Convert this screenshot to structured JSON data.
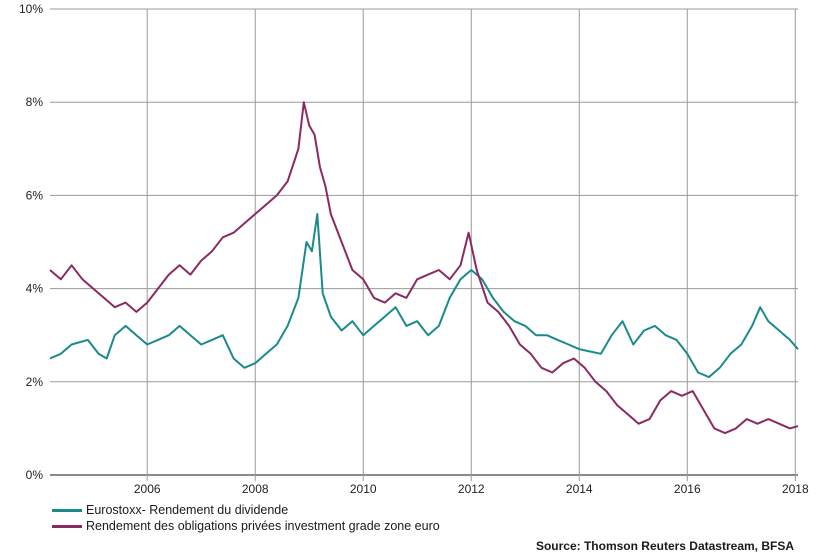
{
  "chart_data": {
    "type": "line",
    "xlim": [
      2004.2,
      2018.05
    ],
    "ylim": [
      0,
      10
    ],
    "x_ticks": [
      {
        "label": "2006",
        "value": 2006
      },
      {
        "label": "2008",
        "value": 2008
      },
      {
        "label": "2010",
        "value": 2010
      },
      {
        "label": "2012",
        "value": 2012
      },
      {
        "label": "2014",
        "value": 2014
      },
      {
        "label": "2016",
        "value": 2016
      },
      {
        "label": "2018",
        "value": 2018
      }
    ],
    "y_ticks": [
      {
        "label": "0%",
        "value": 0
      },
      {
        "label": "2%",
        "value": 2
      },
      {
        "label": "4%",
        "value": 4
      },
      {
        "label": "6%",
        "value": 6
      },
      {
        "label": "8%",
        "value": 8
      },
      {
        "label": "10%",
        "value": 10
      }
    ],
    "grid": true,
    "legend_position": "bottom-left",
    "series": [
      {
        "name": "Eurostoxx- Rendement du dividende",
        "color": "#1b8a8a",
        "points": [
          [
            2004.2,
            2.5
          ],
          [
            2004.4,
            2.6
          ],
          [
            2004.6,
            2.8
          ],
          [
            2004.9,
            2.9
          ],
          [
            2005.1,
            2.6
          ],
          [
            2005.25,
            2.5
          ],
          [
            2005.4,
            3.0
          ],
          [
            2005.6,
            3.2
          ],
          [
            2005.8,
            3.0
          ],
          [
            2006.0,
            2.8
          ],
          [
            2006.2,
            2.9
          ],
          [
            2006.4,
            3.0
          ],
          [
            2006.6,
            3.2
          ],
          [
            2006.8,
            3.0
          ],
          [
            2007.0,
            2.8
          ],
          [
            2007.2,
            2.9
          ],
          [
            2007.4,
            3.0
          ],
          [
            2007.6,
            2.5
          ],
          [
            2007.8,
            2.3
          ],
          [
            2008.0,
            2.4
          ],
          [
            2008.2,
            2.6
          ],
          [
            2008.4,
            2.8
          ],
          [
            2008.6,
            3.2
          ],
          [
            2008.8,
            3.8
          ],
          [
            2008.95,
            5.0
          ],
          [
            2009.05,
            4.8
          ],
          [
            2009.15,
            5.6
          ],
          [
            2009.25,
            3.9
          ],
          [
            2009.4,
            3.4
          ],
          [
            2009.6,
            3.1
          ],
          [
            2009.8,
            3.3
          ],
          [
            2010.0,
            3.0
          ],
          [
            2010.2,
            3.2
          ],
          [
            2010.4,
            3.4
          ],
          [
            2010.6,
            3.6
          ],
          [
            2010.8,
            3.2
          ],
          [
            2011.0,
            3.3
          ],
          [
            2011.2,
            3.0
          ],
          [
            2011.4,
            3.2
          ],
          [
            2011.6,
            3.8
          ],
          [
            2011.8,
            4.2
          ],
          [
            2012.0,
            4.4
          ],
          [
            2012.2,
            4.2
          ],
          [
            2012.4,
            3.8
          ],
          [
            2012.6,
            3.5
          ],
          [
            2012.8,
            3.3
          ],
          [
            2013.0,
            3.2
          ],
          [
            2013.2,
            3.0
          ],
          [
            2013.4,
            3.0
          ],
          [
            2013.6,
            2.9
          ],
          [
            2013.8,
            2.8
          ],
          [
            2014.0,
            2.7
          ],
          [
            2014.2,
            2.65
          ],
          [
            2014.4,
            2.6
          ],
          [
            2014.6,
            3.0
          ],
          [
            2014.8,
            3.3
          ],
          [
            2015.0,
            2.8
          ],
          [
            2015.2,
            3.1
          ],
          [
            2015.4,
            3.2
          ],
          [
            2015.6,
            3.0
          ],
          [
            2015.8,
            2.9
          ],
          [
            2016.0,
            2.6
          ],
          [
            2016.2,
            2.2
          ],
          [
            2016.4,
            2.1
          ],
          [
            2016.6,
            2.3
          ],
          [
            2016.8,
            2.6
          ],
          [
            2017.0,
            2.8
          ],
          [
            2017.2,
            3.2
          ],
          [
            2017.35,
            3.6
          ],
          [
            2017.5,
            3.3
          ],
          [
            2017.7,
            3.1
          ],
          [
            2017.9,
            2.9
          ],
          [
            2018.05,
            2.7
          ]
        ]
      },
      {
        "name": "Rendement des obligations privées investment grade zone euro",
        "color": "#8b2a62",
        "points": [
          [
            2004.2,
            4.4
          ],
          [
            2004.4,
            4.2
          ],
          [
            2004.6,
            4.5
          ],
          [
            2004.8,
            4.2
          ],
          [
            2005.0,
            4.0
          ],
          [
            2005.2,
            3.8
          ],
          [
            2005.4,
            3.6
          ],
          [
            2005.6,
            3.7
          ],
          [
            2005.8,
            3.5
          ],
          [
            2006.0,
            3.7
          ],
          [
            2006.2,
            4.0
          ],
          [
            2006.4,
            4.3
          ],
          [
            2006.6,
            4.5
          ],
          [
            2006.8,
            4.3
          ],
          [
            2007.0,
            4.6
          ],
          [
            2007.2,
            4.8
          ],
          [
            2007.4,
            5.1
          ],
          [
            2007.6,
            5.2
          ],
          [
            2007.8,
            5.4
          ],
          [
            2008.0,
            5.6
          ],
          [
            2008.2,
            5.8
          ],
          [
            2008.4,
            6.0
          ],
          [
            2008.6,
            6.3
          ],
          [
            2008.8,
            7.0
          ],
          [
            2008.9,
            8.0
          ],
          [
            2009.0,
            7.5
          ],
          [
            2009.1,
            7.3
          ],
          [
            2009.2,
            6.6
          ],
          [
            2009.3,
            6.2
          ],
          [
            2009.4,
            5.6
          ],
          [
            2009.6,
            5.0
          ],
          [
            2009.8,
            4.4
          ],
          [
            2010.0,
            4.2
          ],
          [
            2010.2,
            3.8
          ],
          [
            2010.4,
            3.7
          ],
          [
            2010.6,
            3.9
          ],
          [
            2010.8,
            3.8
          ],
          [
            2011.0,
            4.2
          ],
          [
            2011.2,
            4.3
          ],
          [
            2011.4,
            4.4
          ],
          [
            2011.6,
            4.2
          ],
          [
            2011.8,
            4.5
          ],
          [
            2011.95,
            5.2
          ],
          [
            2012.1,
            4.4
          ],
          [
            2012.3,
            3.7
          ],
          [
            2012.5,
            3.5
          ],
          [
            2012.7,
            3.2
          ],
          [
            2012.9,
            2.8
          ],
          [
            2013.1,
            2.6
          ],
          [
            2013.3,
            2.3
          ],
          [
            2013.5,
            2.2
          ],
          [
            2013.7,
            2.4
          ],
          [
            2013.9,
            2.5
          ],
          [
            2014.1,
            2.3
          ],
          [
            2014.3,
            2.0
          ],
          [
            2014.5,
            1.8
          ],
          [
            2014.7,
            1.5
          ],
          [
            2014.9,
            1.3
          ],
          [
            2015.1,
            1.1
          ],
          [
            2015.3,
            1.2
          ],
          [
            2015.5,
            1.6
          ],
          [
            2015.7,
            1.8
          ],
          [
            2015.9,
            1.7
          ],
          [
            2016.1,
            1.8
          ],
          [
            2016.3,
            1.4
          ],
          [
            2016.5,
            1.0
          ],
          [
            2016.7,
            0.9
          ],
          [
            2016.9,
            1.0
          ],
          [
            2017.1,
            1.2
          ],
          [
            2017.3,
            1.1
          ],
          [
            2017.5,
            1.2
          ],
          [
            2017.7,
            1.1
          ],
          [
            2017.9,
            1.0
          ],
          [
            2018.05,
            1.05
          ]
        ]
      }
    ]
  },
  "legend": {
    "items": [
      {
        "label": "Eurostoxx- Rendement du dividende",
        "color": "#1b8a8a"
      },
      {
        "label": "Rendement des obligations privées investment grade zone euro",
        "color": "#8b2a62"
      }
    ]
  },
  "source": "Source: Thomson Reuters Datastream, BFSA"
}
